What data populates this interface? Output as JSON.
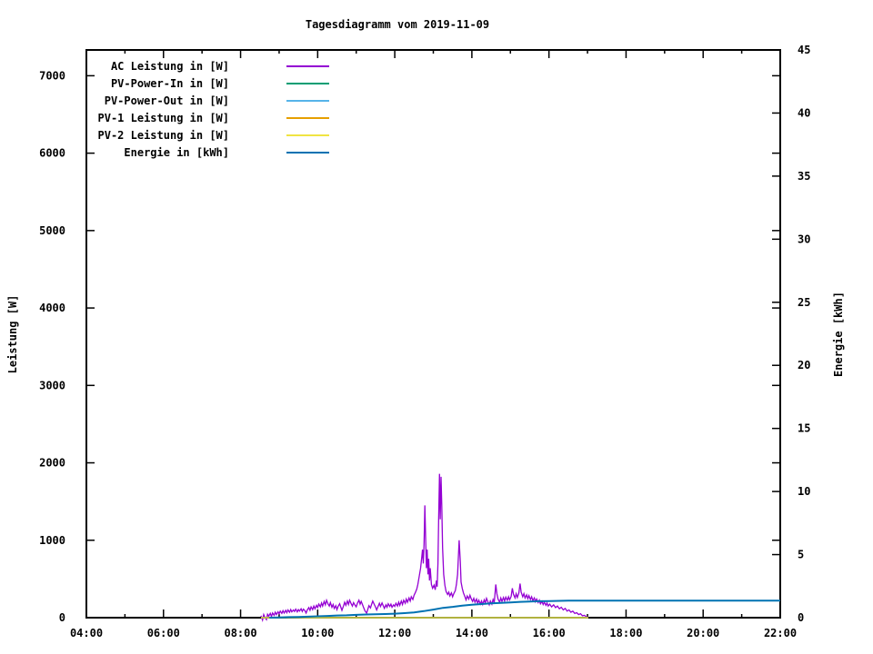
{
  "title": "Tagesdiagramm vom 2019-11-09",
  "chart_data": {
    "type": "line",
    "title": "Tagesdiagramm vom 2019-11-09",
    "grid": false,
    "legend_position": "top-left-inside",
    "x_axis": {
      "unit": "time of day",
      "range_hours": [
        4,
        22
      ],
      "tick_hours": [
        4,
        6,
        8,
        10,
        12,
        14,
        16,
        18,
        20,
        22
      ],
      "tick_labels": [
        "04:00",
        "06:00",
        "08:00",
        "10:00",
        "12:00",
        "14:00",
        "16:00",
        "18:00",
        "20:00",
        "22:00"
      ],
      "minor_tick_hours": [
        5,
        7,
        9,
        11,
        13,
        15,
        17,
        19,
        21
      ]
    },
    "left_axis": {
      "label": "Leistung [W]",
      "range": [
        0,
        7333
      ],
      "ticks": [
        0,
        1000,
        2000,
        3000,
        4000,
        5000,
        6000,
        7000
      ]
    },
    "right_axis": {
      "label": "Energie [kWh]",
      "range": [
        0,
        45
      ],
      "ticks": [
        0,
        5,
        10,
        15,
        20,
        25,
        30,
        35,
        40,
        45
      ]
    },
    "series": [
      {
        "name": "AC Leistung in [W]",
        "color": "#9400D3",
        "axis": "left",
        "width": 1.3,
        "points": [
          [
            8.53,
            25
          ],
          [
            8.57,
            -30
          ],
          [
            8.6,
            40
          ],
          [
            8.63,
            5
          ],
          [
            8.67,
            -25
          ],
          [
            8.7,
            45
          ],
          [
            8.73,
            20
          ],
          [
            8.77,
            55
          ],
          [
            8.8,
            15
          ],
          [
            8.83,
            60
          ],
          [
            8.87,
            30
          ],
          [
            8.9,
            70
          ],
          [
            8.93,
            40
          ],
          [
            8.97,
            75
          ],
          [
            9.0,
            50
          ],
          [
            9.03,
            85
          ],
          [
            9.07,
            55
          ],
          [
            9.1,
            90
          ],
          [
            9.13,
            60
          ],
          [
            9.17,
            95
          ],
          [
            9.2,
            65
          ],
          [
            9.23,
            100
          ],
          [
            9.27,
            70
          ],
          [
            9.3,
            105
          ],
          [
            9.33,
            75
          ],
          [
            9.37,
            100
          ],
          [
            9.4,
            80
          ],
          [
            9.43,
            110
          ],
          [
            9.47,
            75
          ],
          [
            9.5,
            105
          ],
          [
            9.53,
            85
          ],
          [
            9.57,
            115
          ],
          [
            9.6,
            80
          ],
          [
            9.63,
            110
          ],
          [
            9.67,
            90
          ],
          [
            9.7,
            60
          ],
          [
            9.73,
            100
          ],
          [
            9.77,
            130
          ],
          [
            9.8,
            95
          ],
          [
            9.83,
            140
          ],
          [
            9.87,
            105
          ],
          [
            9.9,
            150
          ],
          [
            9.93,
            115
          ],
          [
            9.97,
            160
          ],
          [
            10.0,
            130
          ],
          [
            10.03,
            175
          ],
          [
            10.07,
            140
          ],
          [
            10.1,
            190
          ],
          [
            10.13,
            150
          ],
          [
            10.17,
            210
          ],
          [
            10.2,
            165
          ],
          [
            10.23,
            225
          ],
          [
            10.27,
            175
          ],
          [
            10.3,
            150
          ],
          [
            10.33,
            195
          ],
          [
            10.37,
            135
          ],
          [
            10.4,
            170
          ],
          [
            10.43,
            120
          ],
          [
            10.47,
            155
          ],
          [
            10.5,
            105
          ],
          [
            10.53,
            145
          ],
          [
            10.57,
            180
          ],
          [
            10.6,
            135
          ],
          [
            10.63,
            95
          ],
          [
            10.67,
            150
          ],
          [
            10.7,
            200
          ],
          [
            10.73,
            160
          ],
          [
            10.77,
            215
          ],
          [
            10.8,
            170
          ],
          [
            10.83,
            225
          ],
          [
            10.87,
            180
          ],
          [
            10.9,
            150
          ],
          [
            10.93,
            195
          ],
          [
            10.97,
            160
          ],
          [
            11.0,
            140
          ],
          [
            11.03,
            185
          ],
          [
            11.07,
            225
          ],
          [
            11.1,
            175
          ],
          [
            11.13,
            210
          ],
          [
            11.17,
            160
          ],
          [
            11.2,
            120
          ],
          [
            11.23,
            85
          ],
          [
            11.27,
            60
          ],
          [
            11.3,
            105
          ],
          [
            11.33,
            155
          ],
          [
            11.37,
            125
          ],
          [
            11.4,
            175
          ],
          [
            11.43,
            215
          ],
          [
            11.47,
            170
          ],
          [
            11.5,
            140
          ],
          [
            11.53,
            100
          ],
          [
            11.57,
            150
          ],
          [
            11.6,
            185
          ],
          [
            11.63,
            145
          ],
          [
            11.67,
            190
          ],
          [
            11.7,
            155
          ],
          [
            11.73,
            120
          ],
          [
            11.77,
            165
          ],
          [
            11.8,
            135
          ],
          [
            11.83,
            180
          ],
          [
            11.87,
            145
          ],
          [
            11.9,
            175
          ],
          [
            11.93,
            135
          ],
          [
            11.97,
            165
          ],
          [
            12.0,
            145
          ],
          [
            12.03,
            185
          ],
          [
            12.07,
            150
          ],
          [
            12.1,
            200
          ],
          [
            12.13,
            160
          ],
          [
            12.17,
            215
          ],
          [
            12.2,
            170
          ],
          [
            12.23,
            225
          ],
          [
            12.27,
            185
          ],
          [
            12.3,
            240
          ],
          [
            12.33,
            200
          ],
          [
            12.37,
            255
          ],
          [
            12.4,
            215
          ],
          [
            12.43,
            270
          ],
          [
            12.47,
            235
          ],
          [
            12.5,
            290
          ],
          [
            12.53,
            320
          ],
          [
            12.57,
            370
          ],
          [
            12.6,
            430
          ],
          [
            12.63,
            520
          ],
          [
            12.67,
            640
          ],
          [
            12.7,
            780
          ],
          [
            12.72,
            880
          ],
          [
            12.74,
            700
          ],
          [
            12.76,
            950
          ],
          [
            12.78,
            1450
          ],
          [
            12.8,
            1050
          ],
          [
            12.82,
            640
          ],
          [
            12.84,
            880
          ],
          [
            12.86,
            560
          ],
          [
            12.88,
            760
          ],
          [
            12.9,
            480
          ],
          [
            12.92,
            640
          ],
          [
            12.95,
            430
          ],
          [
            12.98,
            380
          ],
          [
            13.02,
            420
          ],
          [
            13.05,
            360
          ],
          [
            13.08,
            480
          ],
          [
            13.1,
            400
          ],
          [
            13.12,
            700
          ],
          [
            13.14,
            1300
          ],
          [
            13.16,
            1858
          ],
          [
            13.18,
            1270
          ],
          [
            13.2,
            1820
          ],
          [
            13.22,
            1450
          ],
          [
            13.24,
            900
          ],
          [
            13.27,
            560
          ],
          [
            13.3,
            420
          ],
          [
            13.33,
            340
          ],
          [
            13.37,
            300
          ],
          [
            13.4,
            330
          ],
          [
            13.43,
            280
          ],
          [
            13.47,
            320
          ],
          [
            13.5,
            270
          ],
          [
            13.53,
            310
          ],
          [
            13.57,
            350
          ],
          [
            13.6,
            430
          ],
          [
            13.63,
            560
          ],
          [
            13.67,
            1000
          ],
          [
            13.7,
            720
          ],
          [
            13.72,
            460
          ],
          [
            13.75,
            380
          ],
          [
            13.78,
            320
          ],
          [
            13.82,
            270
          ],
          [
            13.85,
            230
          ],
          [
            13.88,
            280
          ],
          [
            13.92,
            240
          ],
          [
            13.95,
            290
          ],
          [
            13.98,
            250
          ],
          [
            14.02,
            210
          ],
          [
            14.05,
            250
          ],
          [
            14.08,
            200
          ],
          [
            14.12,
            240
          ],
          [
            14.15,
            185
          ],
          [
            14.18,
            225
          ],
          [
            14.22,
            175
          ],
          [
            14.25,
            215
          ],
          [
            14.28,
            170
          ],
          [
            14.32,
            230
          ],
          [
            14.35,
            190
          ],
          [
            14.38,
            250
          ],
          [
            14.42,
            200
          ],
          [
            14.45,
            165
          ],
          [
            14.48,
            215
          ],
          [
            14.52,
            175
          ],
          [
            14.55,
            235
          ],
          [
            14.58,
            195
          ],
          [
            14.62,
            430
          ],
          [
            14.65,
            310
          ],
          [
            14.68,
            240
          ],
          [
            14.72,
            200
          ],
          [
            14.75,
            255
          ],
          [
            14.78,
            210
          ],
          [
            14.82,
            260
          ],
          [
            14.85,
            215
          ],
          [
            14.88,
            265
          ],
          [
            14.92,
            225
          ],
          [
            14.95,
            270
          ],
          [
            14.98,
            230
          ],
          [
            15.02,
            275
          ],
          [
            15.05,
            380
          ],
          [
            15.08,
            300
          ],
          [
            15.12,
            255
          ],
          [
            15.15,
            310
          ],
          [
            15.18,
            260
          ],
          [
            15.22,
            320
          ],
          [
            15.25,
            440
          ],
          [
            15.28,
            330
          ],
          [
            15.32,
            270
          ],
          [
            15.35,
            310
          ],
          [
            15.38,
            255
          ],
          [
            15.42,
            295
          ],
          [
            15.45,
            245
          ],
          [
            15.48,
            285
          ],
          [
            15.52,
            235
          ],
          [
            15.55,
            270
          ],
          [
            15.58,
            220
          ],
          [
            15.62,
            255
          ],
          [
            15.65,
            205
          ],
          [
            15.68,
            240
          ],
          [
            15.72,
            195
          ],
          [
            15.75,
            225
          ],
          [
            15.78,
            180
          ],
          [
            15.82,
            210
          ],
          [
            15.85,
            170
          ],
          [
            15.88,
            200
          ],
          [
            15.92,
            160
          ],
          [
            15.95,
            190
          ],
          [
            15.98,
            150
          ],
          [
            16.02,
            175
          ],
          [
            16.07,
            140
          ],
          [
            16.12,
            165
          ],
          [
            16.17,
            130
          ],
          [
            16.22,
            150
          ],
          [
            16.27,
            115
          ],
          [
            16.32,
            135
          ],
          [
            16.37,
            100
          ],
          [
            16.42,
            120
          ],
          [
            16.47,
            85
          ],
          [
            16.52,
            100
          ],
          [
            16.57,
            70
          ],
          [
            16.62,
            85
          ],
          [
            16.67,
            55
          ],
          [
            16.72,
            65
          ],
          [
            16.77,
            40
          ],
          [
            16.82,
            50
          ],
          [
            16.87,
            25
          ],
          [
            16.92,
            30
          ],
          [
            16.97,
            10
          ],
          [
            17.02,
            5
          ]
        ]
      },
      {
        "name": "PV-Power-In in [W]",
        "color": "#009E73",
        "axis": "left",
        "width": 1.3,
        "points": [
          [
            8.53,
            0
          ],
          [
            17.02,
            0
          ]
        ]
      },
      {
        "name": "PV-Power-Out in [W]",
        "color": "#56B4E9",
        "axis": "left",
        "width": 1.3,
        "points": [
          [
            8.53,
            0
          ],
          [
            17.02,
            0
          ]
        ]
      },
      {
        "name": "PV-1 Leistung in [W]",
        "color": "#E69F00",
        "axis": "left",
        "width": 1.3,
        "points": [
          [
            8.53,
            0
          ],
          [
            17.02,
            0
          ]
        ]
      },
      {
        "name": "PV-2 Leistung in [W]",
        "color": "#F0E442",
        "axis": "left",
        "width": 1.3,
        "points": [
          [
            8.53,
            0
          ],
          [
            17.02,
            0
          ]
        ]
      },
      {
        "name": "Energie in [kWh]",
        "color": "#0072B2",
        "axis": "right",
        "width": 2,
        "points": [
          [
            8.75,
            0.0
          ],
          [
            9.0,
            0.02
          ],
          [
            9.25,
            0.04
          ],
          [
            9.5,
            0.06
          ],
          [
            9.75,
            0.08
          ],
          [
            10.0,
            0.11
          ],
          [
            10.25,
            0.14
          ],
          [
            10.5,
            0.17
          ],
          [
            10.75,
            0.19
          ],
          [
            11.0,
            0.22
          ],
          [
            11.25,
            0.25
          ],
          [
            11.5,
            0.27
          ],
          [
            11.75,
            0.29
          ],
          [
            12.0,
            0.32
          ],
          [
            12.25,
            0.36
          ],
          [
            12.5,
            0.42
          ],
          [
            12.75,
            0.52
          ],
          [
            13.0,
            0.64
          ],
          [
            13.25,
            0.78
          ],
          [
            13.5,
            0.86
          ],
          [
            13.75,
            0.96
          ],
          [
            14.0,
            1.03
          ],
          [
            14.25,
            1.08
          ],
          [
            14.5,
            1.13
          ],
          [
            14.75,
            1.17
          ],
          [
            15.0,
            1.21
          ],
          [
            15.25,
            1.25
          ],
          [
            15.5,
            1.28
          ],
          [
            15.75,
            1.3
          ],
          [
            16.0,
            1.32
          ],
          [
            16.25,
            1.33
          ],
          [
            16.5,
            1.35
          ],
          [
            17.0,
            1.35
          ],
          [
            22.0,
            1.35
          ]
        ]
      }
    ]
  },
  "style": {
    "background": "#ffffff",
    "border_color": "#000000",
    "text_color": "#000000"
  }
}
